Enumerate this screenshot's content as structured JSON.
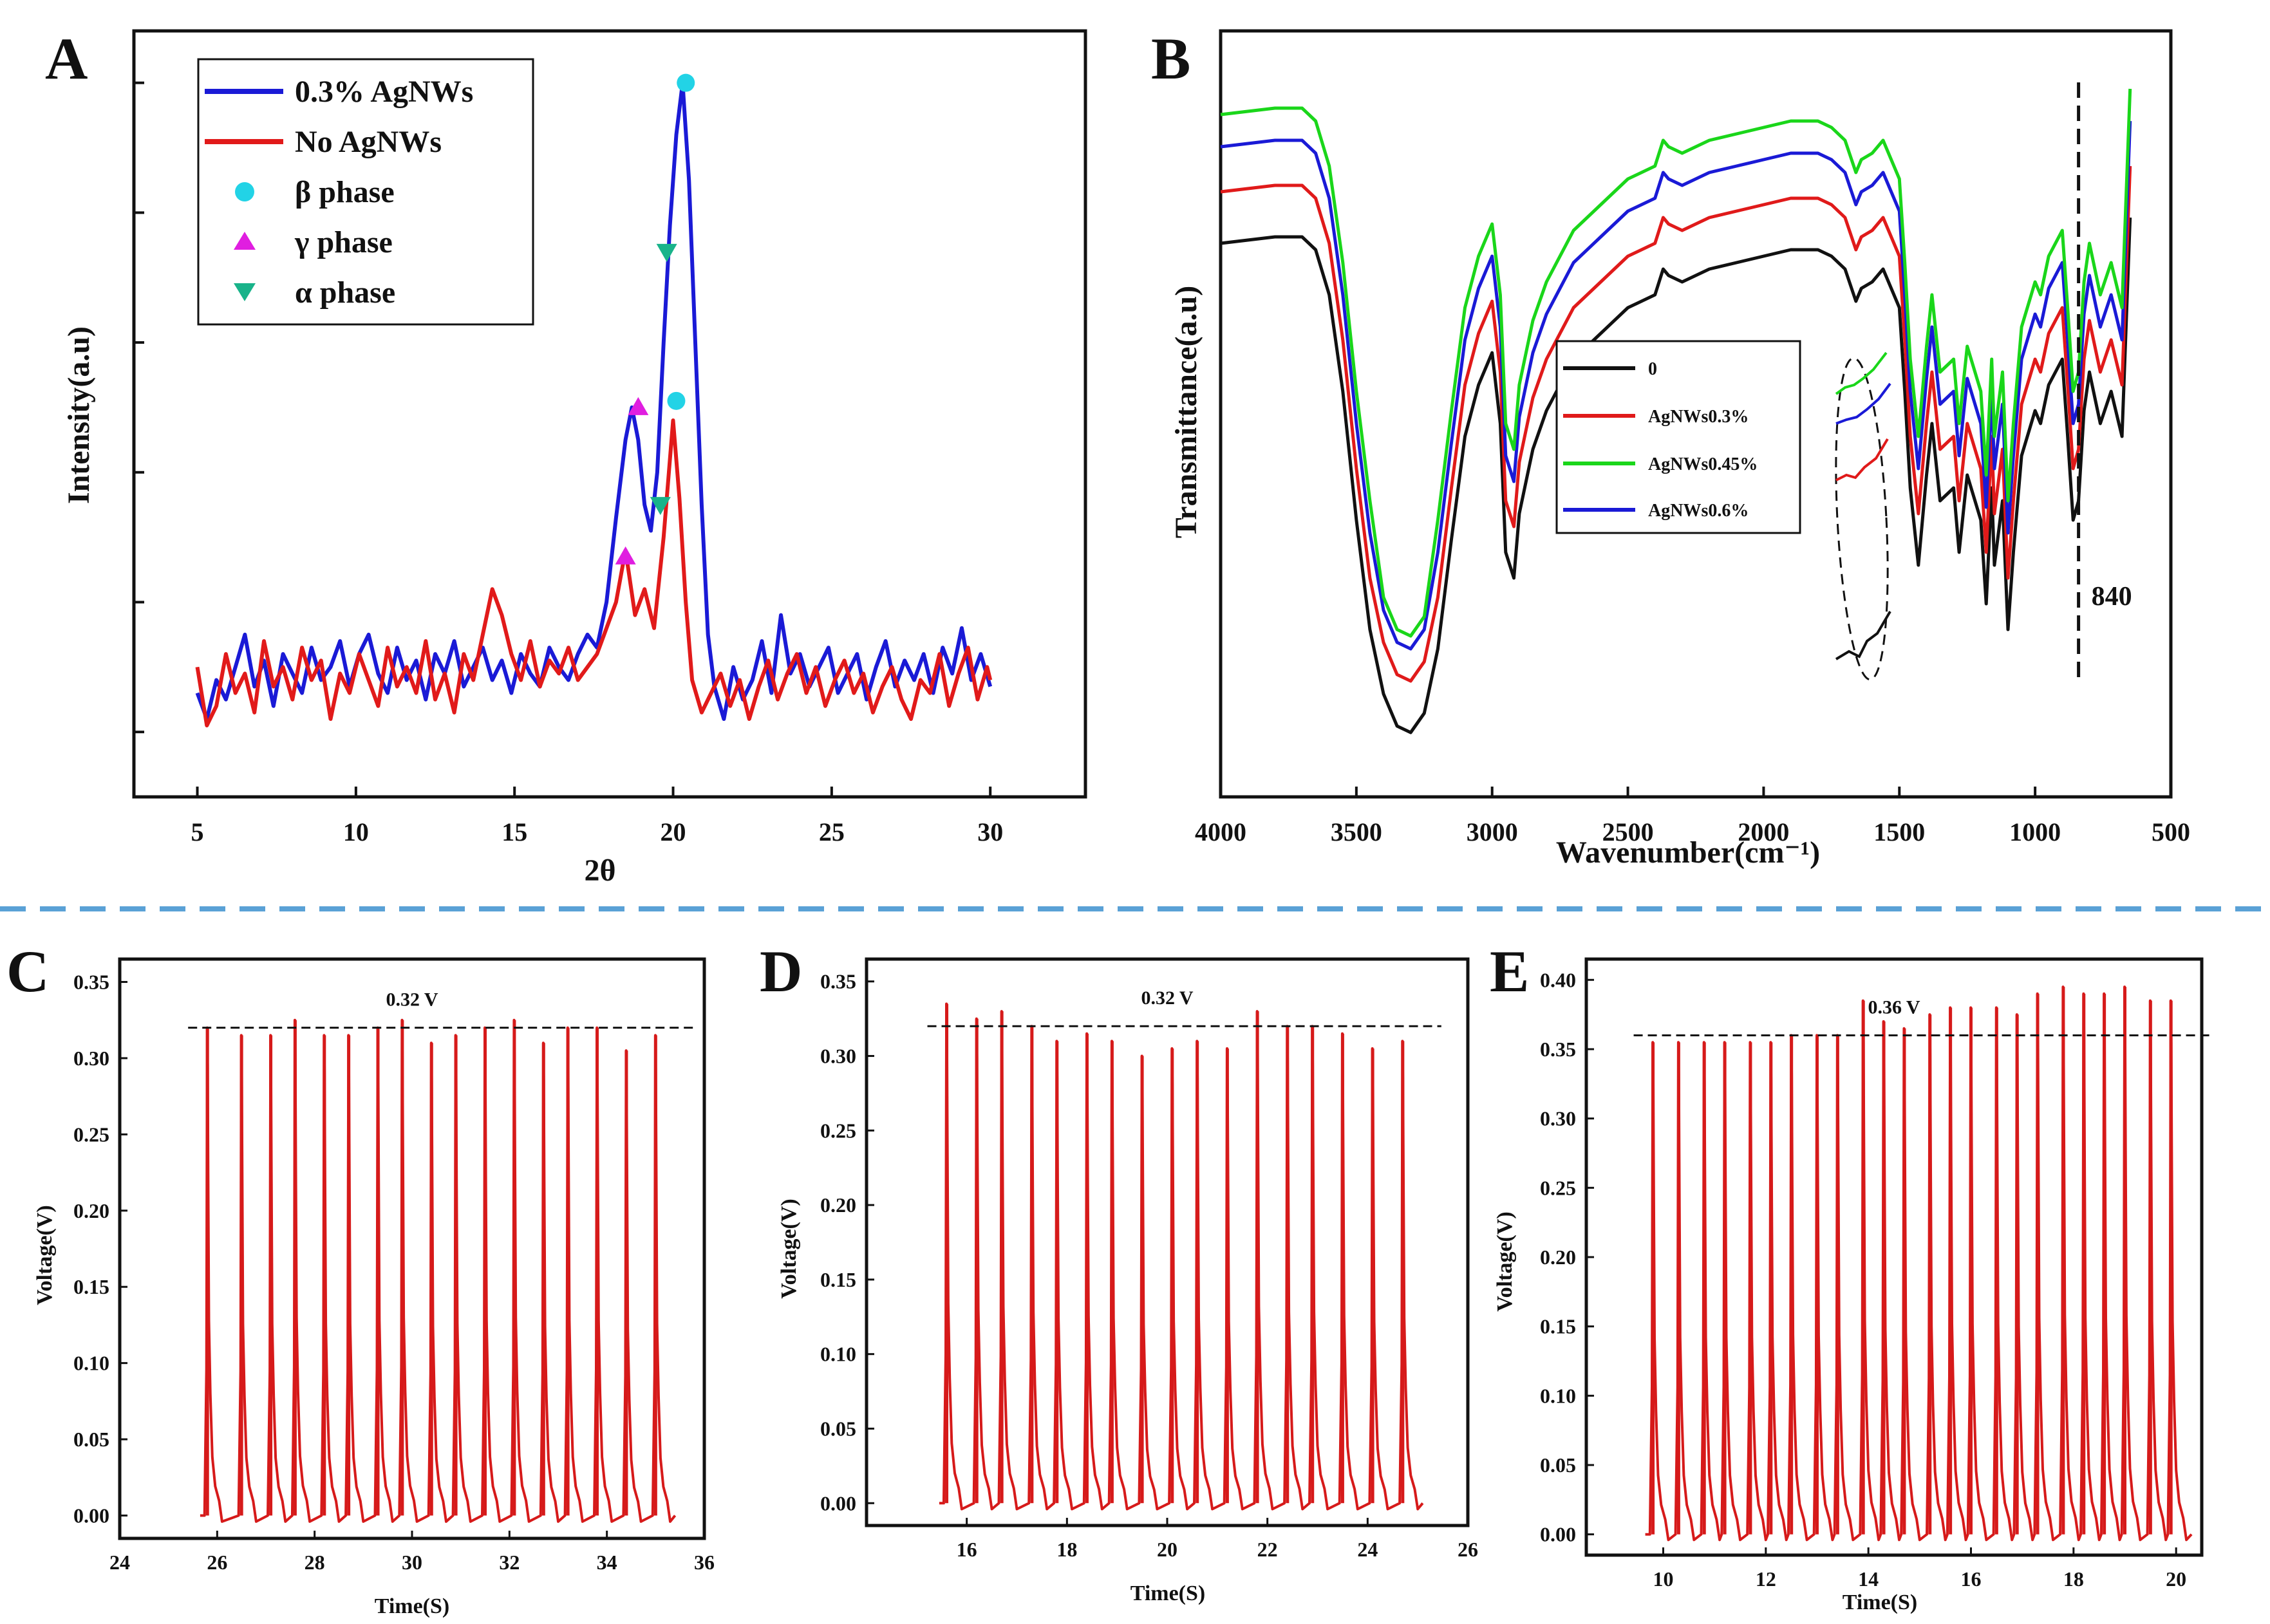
{
  "chart_data": [
    {
      "id": "A",
      "panel_label": "A",
      "type": "line",
      "xlabel": "2θ",
      "ylabel": "Intensity(a.u)",
      "xlim": [
        3.0,
        33.0
      ],
      "ylim": [
        -0.1,
        1.08
      ],
      "xticks": [
        "5",
        "10",
        "15",
        "20",
        "25",
        "30"
      ],
      "xtick_values": [
        5,
        10,
        15,
        20,
        25,
        30
      ],
      "yticks_count": 6,
      "series": [
        {
          "name": "0.3% AgNWs",
          "color": "#1a1ad6",
          "x": [
            5.0,
            5.3,
            5.6,
            5.9,
            6.2,
            6.5,
            6.8,
            7.1,
            7.4,
            7.7,
            8.0,
            8.3,
            8.6,
            8.9,
            9.2,
            9.5,
            9.8,
            10.1,
            10.4,
            10.7,
            11.0,
            11.3,
            11.6,
            11.9,
            12.2,
            12.5,
            12.8,
            13.1,
            13.4,
            13.7,
            14.0,
            14.3,
            14.6,
            14.9,
            15.2,
            15.5,
            15.8,
            16.1,
            16.4,
            16.7,
            17.0,
            17.3,
            17.6,
            17.9,
            18.2,
            18.5,
            18.7,
            18.9,
            19.1,
            19.3,
            19.5,
            19.7,
            19.9,
            20.1,
            20.3,
            20.5,
            20.7,
            20.9,
            21.1,
            21.3,
            21.6,
            21.9,
            22.2,
            22.5,
            22.8,
            23.1,
            23.4,
            23.7,
            24.0,
            24.3,
            24.6,
            24.9,
            25.2,
            25.5,
            25.8,
            26.1,
            26.4,
            26.7,
            27.0,
            27.3,
            27.6,
            27.9,
            28.2,
            28.5,
            28.8,
            29.1,
            29.4,
            29.7,
            30.0
          ],
          "y": [
            0.06,
            0.02,
            0.08,
            0.05,
            0.1,
            0.15,
            0.07,
            0.11,
            0.04,
            0.12,
            0.09,
            0.06,
            0.13,
            0.08,
            0.1,
            0.14,
            0.07,
            0.12,
            0.15,
            0.09,
            0.06,
            0.13,
            0.08,
            0.11,
            0.05,
            0.12,
            0.09,
            0.14,
            0.07,
            0.1,
            0.13,
            0.08,
            0.11,
            0.06,
            0.12,
            0.09,
            0.07,
            0.13,
            0.1,
            0.08,
            0.12,
            0.15,
            0.13,
            0.2,
            0.33,
            0.45,
            0.5,
            0.45,
            0.35,
            0.31,
            0.4,
            0.6,
            0.78,
            0.92,
            1.0,
            0.85,
            0.6,
            0.35,
            0.15,
            0.07,
            0.02,
            0.1,
            0.05,
            0.08,
            0.14,
            0.06,
            0.18,
            0.09,
            0.12,
            0.07,
            0.1,
            0.13,
            0.06,
            0.09,
            0.12,
            0.05,
            0.1,
            0.14,
            0.07,
            0.11,
            0.08,
            0.12,
            0.06,
            0.13,
            0.09,
            0.16,
            0.08,
            0.12,
            0.07
          ]
        },
        {
          "name": "No AgNWs",
          "color": "#e11a1a",
          "x": [
            5.0,
            5.3,
            5.6,
            5.9,
            6.2,
            6.5,
            6.8,
            7.1,
            7.4,
            7.7,
            8.0,
            8.3,
            8.6,
            8.9,
            9.2,
            9.5,
            9.8,
            10.1,
            10.4,
            10.7,
            11.0,
            11.3,
            11.6,
            11.9,
            12.2,
            12.5,
            12.8,
            13.1,
            13.4,
            13.7,
            14.0,
            14.3,
            14.6,
            14.9,
            15.2,
            15.5,
            15.8,
            16.1,
            16.4,
            16.7,
            17.0,
            17.3,
            17.6,
            17.9,
            18.2,
            18.5,
            18.8,
            19.1,
            19.4,
            19.7,
            20.0,
            20.2,
            20.4,
            20.6,
            20.9,
            21.2,
            21.5,
            21.8,
            22.1,
            22.4,
            22.7,
            23.0,
            23.3,
            23.6,
            23.9,
            24.2,
            24.5,
            24.8,
            25.1,
            25.4,
            25.7,
            26.0,
            26.3,
            26.6,
            26.9,
            27.2,
            27.5,
            27.8,
            28.1,
            28.4,
            28.7,
            29.0,
            29.3,
            29.6,
            29.9,
            30.0
          ],
          "y": [
            0.1,
            0.01,
            0.04,
            0.12,
            0.06,
            0.09,
            0.03,
            0.14,
            0.07,
            0.1,
            0.05,
            0.13,
            0.08,
            0.11,
            0.02,
            0.09,
            0.06,
            0.12,
            0.08,
            0.04,
            0.13,
            0.07,
            0.1,
            0.06,
            0.14,
            0.05,
            0.09,
            0.03,
            0.12,
            0.08,
            0.15,
            0.22,
            0.18,
            0.12,
            0.08,
            0.14,
            0.07,
            0.11,
            0.09,
            0.13,
            0.08,
            0.1,
            0.12,
            0.16,
            0.2,
            0.28,
            0.18,
            0.22,
            0.16,
            0.3,
            0.48,
            0.36,
            0.2,
            0.08,
            0.03,
            0.06,
            0.09,
            0.04,
            0.08,
            0.02,
            0.07,
            0.11,
            0.05,
            0.09,
            0.12,
            0.06,
            0.1,
            0.04,
            0.08,
            0.11,
            0.06,
            0.09,
            0.03,
            0.07,
            0.1,
            0.05,
            0.02,
            0.08,
            0.06,
            0.12,
            0.04,
            0.09,
            0.13,
            0.05,
            0.1,
            0.08
          ]
        }
      ],
      "markers": [
        {
          "name": "β phase",
          "shape": "circle",
          "color": "#22d3e6",
          "points": [
            [
              20.4,
              1.0
            ],
            [
              20.1,
              0.51
            ]
          ]
        },
        {
          "name": "γ phase",
          "shape": "triangle-up",
          "color": "#e01ee0",
          "points": [
            [
              18.9,
              0.5
            ],
            [
              18.5,
              0.27
            ]
          ]
        },
        {
          "name": "α phase",
          "shape": "triangle-down",
          "color": "#19b38a",
          "points": [
            [
              19.8,
              0.74
            ],
            [
              19.6,
              0.35
            ]
          ]
        }
      ],
      "legend_position": "top-left"
    },
    {
      "id": "B",
      "panel_label": "B",
      "type": "line",
      "xlabel": "Wavenumber(cm⁻¹)",
      "ylabel": "Transmittance(a.u)",
      "xlim": [
        4000,
        500
      ],
      "ylim": [
        0,
        1
      ],
      "xticks": [
        "4000",
        "3500",
        "3000",
        "2500",
        "2000",
        "1500",
        "1000",
        "500"
      ],
      "xtick_values": [
        4000,
        3500,
        3000,
        2500,
        2000,
        1500,
        1000,
        500
      ],
      "reference_line": {
        "x": 840,
        "label": "840"
      },
      "series": [
        {
          "name": "0",
          "color": "#111111",
          "offset": 0.0
        },
        {
          "name": "AgNWs0.3%",
          "color": "#e01a1a",
          "offset": 0.08
        },
        {
          "name": "AgNWs0.45%",
          "color": "#1ad61a",
          "offset": 0.2
        },
        {
          "name": "AgNWs0.6%",
          "color": "#1a1ad6",
          "offset": 0.15
        }
      ],
      "base_spectrum": {
        "x": [
          4000,
          3800,
          3700,
          3650,
          3600,
          3550,
          3500,
          3450,
          3400,
          3350,
          3300,
          3250,
          3200,
          3150,
          3100,
          3050,
          3000,
          2970,
          2950,
          2920,
          2900,
          2870,
          2850,
          2800,
          2700,
          2600,
          2500,
          2400,
          2370,
          2350,
          2300,
          2200,
          2100,
          2000,
          1900,
          1800,
          1750,
          1700,
          1660,
          1640,
          1600,
          1560,
          1500,
          1480,
          1460,
          1430,
          1400,
          1380,
          1350,
          1300,
          1280,
          1250,
          1200,
          1180,
          1160,
          1150,
          1120,
          1100,
          1080,
          1050,
          1000,
          980,
          950,
          900,
          880,
          860,
          840,
          820,
          800,
          760,
          720,
          680,
          650
        ],
        "y": [
          0.78,
          0.79,
          0.79,
          0.77,
          0.7,
          0.55,
          0.35,
          0.18,
          0.08,
          0.03,
          0.02,
          0.05,
          0.15,
          0.32,
          0.48,
          0.56,
          0.61,
          0.5,
          0.3,
          0.26,
          0.36,
          0.42,
          0.46,
          0.52,
          0.6,
          0.64,
          0.68,
          0.7,
          0.74,
          0.73,
          0.72,
          0.74,
          0.75,
          0.76,
          0.77,
          0.77,
          0.76,
          0.74,
          0.69,
          0.71,
          0.72,
          0.74,
          0.68,
          0.55,
          0.4,
          0.28,
          0.42,
          0.5,
          0.38,
          0.4,
          0.3,
          0.42,
          0.35,
          0.22,
          0.4,
          0.28,
          0.38,
          0.18,
          0.3,
          0.45,
          0.52,
          0.5,
          0.56,
          0.6,
          0.48,
          0.35,
          0.38,
          0.52,
          0.58,
          0.5,
          0.55,
          0.48,
          0.82
        ]
      },
      "legend_position": "center"
    },
    {
      "id": "C",
      "panel_label": "C",
      "type": "line",
      "xlabel": "Time(S)",
      "ylabel": "Voltage(V)",
      "xlim": [
        24,
        36
      ],
      "ylim": [
        -0.015,
        0.365
      ],
      "xticks": [
        "24",
        "26",
        "28",
        "30",
        "32",
        "34",
        "36"
      ],
      "xtick_values": [
        24,
        26,
        28,
        30,
        32,
        34,
        36
      ],
      "yticks": [
        "0.00",
        "0.05",
        "0.10",
        "0.15",
        "0.20",
        "0.25",
        "0.30",
        "0.35"
      ],
      "ytick_values": [
        0,
        0.05,
        0.1,
        0.15,
        0.2,
        0.25,
        0.3,
        0.35
      ],
      "reference": {
        "y": 0.32,
        "label": "0.32 V"
      },
      "pulse_times": [
        25.8,
        26.5,
        27.1,
        27.6,
        28.2,
        28.7,
        29.3,
        29.8,
        30.4,
        30.9,
        31.5,
        32.1,
        32.7,
        33.2,
        33.8,
        34.4,
        35.0
      ],
      "pulse_peaks": [
        0.32,
        0.315,
        0.315,
        0.325,
        0.315,
        0.315,
        0.32,
        0.325,
        0.31,
        0.315,
        0.32,
        0.325,
        0.31,
        0.32,
        0.32,
        0.305,
        0.315
      ],
      "color": "#d61a1a"
    },
    {
      "id": "D",
      "panel_label": "D",
      "type": "line",
      "xlabel": "Time(S)",
      "ylabel": "Voltage(V)",
      "xlim": [
        14,
        26
      ],
      "ylim": [
        -0.015,
        0.365
      ],
      "xticks": [
        "16",
        "18",
        "20",
        "22",
        "24",
        "26"
      ],
      "xtick_values": [
        16,
        18,
        20,
        22,
        24,
        26
      ],
      "yticks": [
        "0.00",
        "0.05",
        "0.10",
        "0.15",
        "0.20",
        "0.25",
        "0.30",
        "0.35"
      ],
      "ytick_values": [
        0,
        0.05,
        0.1,
        0.15,
        0.2,
        0.25,
        0.3,
        0.35
      ],
      "reference": {
        "y": 0.32,
        "label": "0.32 V"
      },
      "pulse_times": [
        15.6,
        16.2,
        16.7,
        17.3,
        17.8,
        18.4,
        18.9,
        19.5,
        20.1,
        20.6,
        21.2,
        21.8,
        22.4,
        22.9,
        23.5,
        24.1,
        24.7
      ],
      "pulse_peaks": [
        0.335,
        0.325,
        0.33,
        0.32,
        0.31,
        0.315,
        0.31,
        0.3,
        0.305,
        0.31,
        0.305,
        0.33,
        0.32,
        0.32,
        0.315,
        0.305,
        0.31
      ],
      "color": "#d61a1a"
    },
    {
      "id": "E",
      "panel_label": "E",
      "type": "line",
      "xlabel": "Time(S)",
      "ylabel": "Voltage(V)",
      "xlim": [
        8.5,
        20.5
      ],
      "ylim": [
        -0.015,
        0.415
      ],
      "xticks": [
        "10",
        "12",
        "14",
        "16",
        "18",
        "20"
      ],
      "xtick_values": [
        10,
        12,
        14,
        16,
        18,
        20
      ],
      "yticks": [
        "0.00",
        "0.05",
        "0.10",
        "0.15",
        "0.20",
        "0.25",
        "0.30",
        "0.35",
        "0.40"
      ],
      "ytick_values": [
        0,
        0.05,
        0.1,
        0.15,
        0.2,
        0.25,
        0.3,
        0.35,
        0.4
      ],
      "reference": {
        "y": 0.36,
        "label": "0.36 V"
      },
      "pulse_times": [
        9.8,
        10.3,
        10.8,
        11.2,
        11.7,
        12.1,
        12.5,
        13.0,
        13.4,
        13.9,
        14.3,
        14.7,
        15.2,
        15.6,
        16.0,
        16.5,
        16.9,
        17.3,
        17.8,
        18.2,
        18.6,
        19.0,
        19.5,
        19.9
      ],
      "pulse_peaks": [
        0.355,
        0.355,
        0.355,
        0.355,
        0.355,
        0.355,
        0.36,
        0.36,
        0.36,
        0.385,
        0.37,
        0.365,
        0.375,
        0.38,
        0.38,
        0.38,
        0.375,
        0.39,
        0.395,
        0.39,
        0.39,
        0.395,
        0.385,
        0.385
      ],
      "color": "#d61a1a"
    }
  ]
}
